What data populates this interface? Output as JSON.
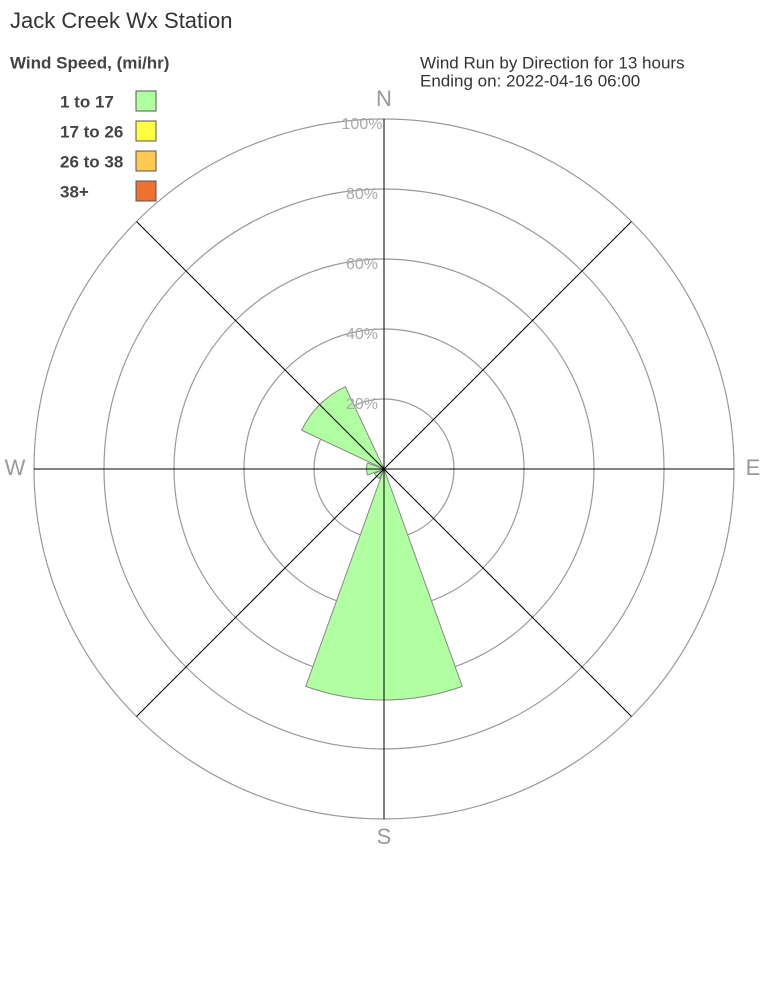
{
  "chart_data": {
    "type": "wind-rose",
    "title": "Jack Creek Wx Station",
    "subtitle": [
      "Wind Run by Direction for 13 hours",
      "Ending on: 2022-04-16 06:00"
    ],
    "legend_title": "Wind Speed, (mi/hr)",
    "categories": [
      "N",
      null,
      "E",
      null,
      "S",
      null,
      "W",
      null
    ],
    "series": [
      {
        "name": "1 to 17",
        "color": "#b0ffa0",
        "values": [
          0,
          0,
          0,
          0,
          66,
          3,
          5,
          26
        ]
      },
      {
        "name": "17 to 26",
        "color": "#ffff40",
        "values": [
          0,
          0,
          0,
          0,
          0,
          0,
          0,
          0
        ]
      },
      {
        "name": "26 to 38",
        "color": "#ffc850",
        "values": [
          0,
          0,
          0,
          0,
          0,
          0,
          0,
          0
        ]
      },
      {
        "name": "38+",
        "color": "#f07030",
        "values": [
          0,
          0,
          0,
          0,
          0,
          0,
          0,
          0
        ]
      }
    ],
    "rlim": [
      0,
      100
    ],
    "rticks": [
      {
        "value": 20,
        "label": "20%"
      },
      {
        "value": 40,
        "label": "40%"
      },
      {
        "value": 60,
        "label": "60%"
      },
      {
        "value": 80,
        "label": "80%"
      },
      {
        "value": 100,
        "label": "100%"
      }
    ],
    "grid": true
  }
}
